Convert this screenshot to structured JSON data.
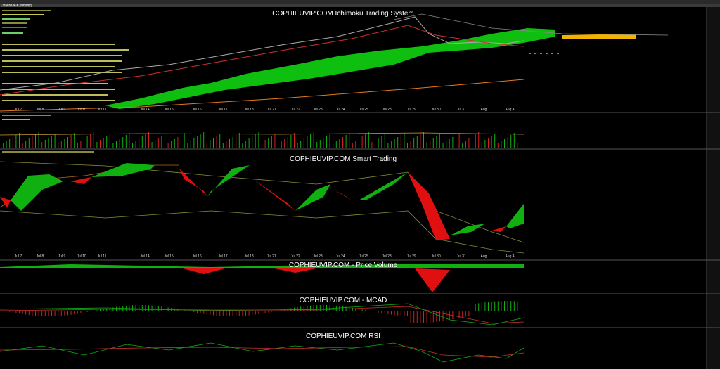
{
  "window": {
    "tab": "VNINDEX (Hourly)"
  },
  "panels": [
    {
      "title": "COPHIEUVIP.COM Ichimoku Trading System"
    },
    {
      "title": "COPHIEUVIP.COM Smart Trading"
    },
    {
      "title": "COPHIEUVIP.COM - Price Volume"
    },
    {
      "title": "COPHIEUVIP.COM - MCAD"
    },
    {
      "title": "COPHIEUVIP.COM RSI"
    }
  ],
  "time_axis": {
    "labels": [
      "Jul 7",
      "Jul 8",
      "Jul 9",
      "Jul 10",
      "Jul 11",
      "Jul 14",
      "Jul 15",
      "Jul 16",
      "Jul 17",
      "Jul 18",
      "Jul 21",
      "Jul 22",
      "Jul 23",
      "Jul 24",
      "Jul 25",
      "Jul 28",
      "Jul 29",
      "Jul 30",
      "Jul 31",
      "Aug",
      "Aug 4"
    ]
  }
}
